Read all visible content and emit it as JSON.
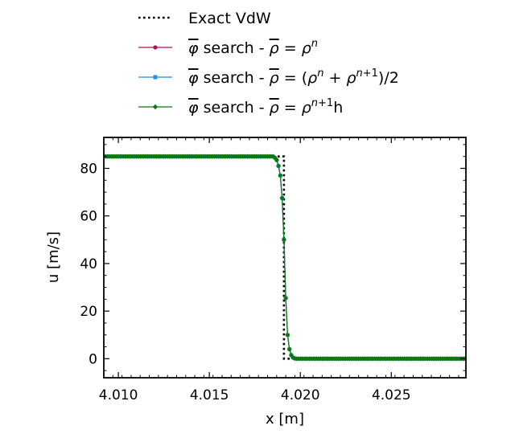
{
  "chart_data": {
    "type": "line",
    "xlabel": "x [m]",
    "ylabel": "u [m/s]",
    "xlim": [
      4.0092,
      4.0291
    ],
    "ylim": [
      -8,
      93
    ],
    "xticks": [
      4.01,
      4.015,
      4.02,
      4.025
    ],
    "xtick_labels": [
      "4.010",
      "4.015",
      "4.020",
      "4.025"
    ],
    "yticks": [
      0,
      20,
      40,
      60,
      80
    ],
    "ytick_labels": [
      "0",
      "20",
      "40",
      "60",
      "80"
    ],
    "grid": false,
    "legend_position": "top-center",
    "series": [
      {
        "name": "Exact VdW",
        "style": "dotted",
        "color": "#000000",
        "x": [
          4.0092,
          4.0188,
          4.0191,
          4.0191,
          4.0291
        ],
        "y": [
          85,
          85,
          85,
          0,
          0
        ]
      },
      {
        "name": "φ̄ search - ρ̄ = ρⁿ",
        "style": "line-circle",
        "color": "#b0105a",
        "x": [
          4.0092,
          4.0185,
          4.0186,
          4.0187,
          4.0188,
          4.0189,
          4.019,
          4.0191,
          4.0192,
          4.0193,
          4.0194,
          4.0195,
          4.0196,
          4.0197,
          4.0198,
          4.0291
        ],
        "y": [
          85,
          85,
          84.5,
          83.5,
          81,
          77,
          67.5,
          50,
          25.5,
          10,
          4,
          1.5,
          0.5,
          0.1,
          0,
          0
        ]
      },
      {
        "name": "φ̄ search - ρ̄ = (ρⁿ + ρⁿ⁺¹)/2",
        "style": "line-square",
        "color": "#1f8fe8",
        "x": [
          4.0092,
          4.0185,
          4.0186,
          4.0187,
          4.0188,
          4.0189,
          4.019,
          4.0191,
          4.0192,
          4.0193,
          4.0194,
          4.0195,
          4.0196,
          4.0197,
          4.0198,
          4.0291
        ],
        "y": [
          85,
          85,
          84.5,
          83.5,
          81,
          77,
          67.5,
          50,
          25.5,
          10,
          4,
          1.5,
          0.5,
          0.1,
          0,
          0
        ]
      },
      {
        "name": "φ̄ search - ρ̄ = ρⁿ⁺¹h",
        "style": "line-diamond",
        "color": "#0c7a0c",
        "x": [
          4.0092,
          4.0185,
          4.0186,
          4.0187,
          4.0188,
          4.0189,
          4.019,
          4.0191,
          4.0192,
          4.0193,
          4.0194,
          4.0195,
          4.0196,
          4.0197,
          4.0198,
          4.0291
        ],
        "y": [
          85,
          85,
          84.5,
          83.5,
          81,
          77,
          67.5,
          50,
          25.5,
          10,
          4,
          1.5,
          0.5,
          0.1,
          0,
          0
        ]
      }
    ]
  }
}
